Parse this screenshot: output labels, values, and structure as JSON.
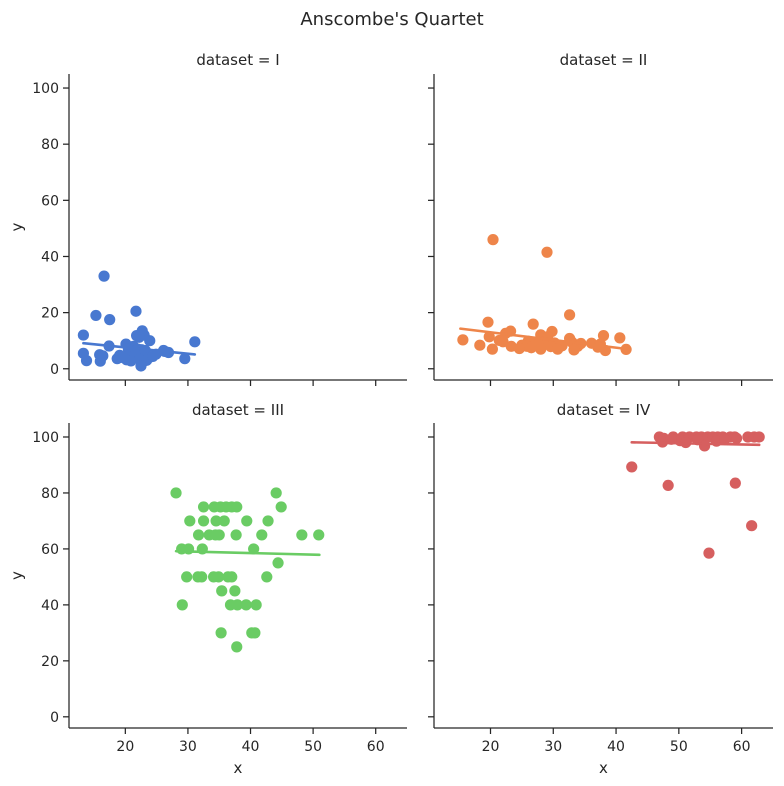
{
  "chart_data": {
    "type": "scatter",
    "title": "Anscombe's Quartet",
    "xlabel": "x",
    "ylabel": "y",
    "xlim": [
      11,
      65
    ],
    "ylim": [
      -4,
      105
    ],
    "xticks": [
      20,
      30,
      40,
      50,
      60
    ],
    "yticks": [
      0,
      20,
      40,
      60,
      80,
      100
    ],
    "grid": false,
    "panels": [
      {
        "name": "I",
        "title": "dataset = I",
        "color": "#4878d0",
        "fit": [
          [
            13.3,
            9.1
          ],
          [
            31.1,
            5.1
          ]
        ],
        "points": [
          [
            16.6,
            33
          ],
          [
            21.7,
            20.5
          ],
          [
            15.3,
            19
          ],
          [
            17.5,
            17.5
          ],
          [
            13.3,
            12
          ],
          [
            22.7,
            13.5
          ],
          [
            21.8,
            11.8
          ],
          [
            23.0,
            12.0
          ],
          [
            22.2,
            11.2
          ],
          [
            23.9,
            10
          ],
          [
            31.1,
            9.6
          ],
          [
            17.4,
            8.1
          ],
          [
            20.1,
            8.8
          ],
          [
            21.3,
            8.0
          ],
          [
            22.0,
            7.0
          ],
          [
            20.5,
            6.8
          ],
          [
            22.6,
            6.8
          ],
          [
            23.2,
            6.5
          ],
          [
            26.1,
            6.5
          ],
          [
            26.9,
            5.8
          ],
          [
            26.3,
            6.2
          ],
          [
            13.3,
            5.5
          ],
          [
            15.9,
            5.0
          ],
          [
            16.4,
            4.6
          ],
          [
            19.1,
            4.8
          ],
          [
            20.4,
            4.4
          ],
          [
            21.5,
            4.7
          ],
          [
            18.7,
            3.6
          ],
          [
            20.2,
            3.2
          ],
          [
            20.9,
            2.8
          ],
          [
            22.3,
            3.4
          ],
          [
            23.4,
            3.0
          ],
          [
            23.8,
            4.0
          ],
          [
            24.4,
            4.4
          ],
          [
            24.9,
            5.2
          ],
          [
            29.5,
            3.6
          ],
          [
            13.8,
            2.9
          ],
          [
            16.0,
            2.7
          ],
          [
            22.5,
            1.0
          ],
          [
            19.6,
            4.0
          ]
        ]
      },
      {
        "name": "II",
        "title": "dataset = II",
        "color": "#ee854a",
        "fit": [
          [
            15.2,
            14.3
          ],
          [
            41.9,
            7.0
          ]
        ],
        "points": [
          [
            20.4,
            46
          ],
          [
            29.0,
            41.5
          ],
          [
            32.6,
            19.2
          ],
          [
            19.6,
            16.6
          ],
          [
            26.8,
            15.9
          ],
          [
            23.2,
            13.4
          ],
          [
            22.4,
            12.6
          ],
          [
            29.8,
            13.3
          ],
          [
            28.0,
            12.1
          ],
          [
            19.8,
            11.4
          ],
          [
            29.1,
            11.4
          ],
          [
            32.6,
            10.8
          ],
          [
            38.0,
            11.8
          ],
          [
            40.6,
            11.0
          ],
          [
            15.6,
            10.3
          ],
          [
            21.4,
            10.1
          ],
          [
            22.0,
            9.6
          ],
          [
            26.0,
            9.8
          ],
          [
            27.2,
            9.5
          ],
          [
            28.5,
            9.6
          ],
          [
            30.2,
            9.2
          ],
          [
            33.0,
            9.4
          ],
          [
            34.4,
            9.0
          ],
          [
            36.1,
            9.1
          ],
          [
            37.5,
            8.8
          ],
          [
            18.3,
            8.4
          ],
          [
            23.3,
            8.0
          ],
          [
            25.0,
            8.4
          ],
          [
            25.8,
            8.0
          ],
          [
            27.6,
            8.7
          ],
          [
            29.6,
            7.9
          ],
          [
            31.4,
            8.2
          ],
          [
            33.9,
            8.0
          ],
          [
            37.1,
            7.7
          ],
          [
            20.3,
            7.0
          ],
          [
            24.6,
            7.2
          ],
          [
            26.5,
            7.5
          ],
          [
            28.0,
            7.0
          ],
          [
            33.3,
            6.7
          ],
          [
            38.3,
            6.5
          ],
          [
            41.6,
            6.9
          ],
          [
            30.7,
            7.0
          ]
        ]
      },
      {
        "name": "III",
        "title": "dataset = III",
        "color": "#6acc64",
        "fit": [
          [
            28.1,
            59.2
          ],
          [
            51.0,
            57.9
          ]
        ],
        "points": [
          [
            28.1,
            80
          ],
          [
            44.1,
            80
          ],
          [
            32.5,
            75
          ],
          [
            34.2,
            75
          ],
          [
            35.2,
            75
          ],
          [
            36.1,
            75
          ],
          [
            37.0,
            75
          ],
          [
            37.8,
            75
          ],
          [
            44.9,
            75
          ],
          [
            30.3,
            70
          ],
          [
            32.5,
            70
          ],
          [
            34.5,
            70
          ],
          [
            35.8,
            70
          ],
          [
            39.4,
            70
          ],
          [
            42.8,
            70
          ],
          [
            31.7,
            65
          ],
          [
            33.4,
            65
          ],
          [
            34.4,
            65
          ],
          [
            35.0,
            65
          ],
          [
            37.7,
            65
          ],
          [
            41.8,
            65
          ],
          [
            48.2,
            65
          ],
          [
            50.9,
            65
          ],
          [
            29.0,
            60
          ],
          [
            30.1,
            60
          ],
          [
            32.3,
            60
          ],
          [
            40.5,
            60
          ],
          [
            44.4,
            55
          ],
          [
            29.8,
            50
          ],
          [
            31.6,
            50
          ],
          [
            32.2,
            50
          ],
          [
            34.1,
            50
          ],
          [
            34.9,
            50
          ],
          [
            36.4,
            50
          ],
          [
            37.0,
            50
          ],
          [
            42.6,
            50
          ],
          [
            35.4,
            45
          ],
          [
            37.5,
            45
          ],
          [
            29.1,
            40
          ],
          [
            36.8,
            40
          ],
          [
            37.9,
            40
          ],
          [
            39.3,
            40
          ],
          [
            40.9,
            40
          ],
          [
            35.3,
            30
          ],
          [
            40.2,
            30
          ],
          [
            40.7,
            30
          ],
          [
            37.8,
            25
          ]
        ]
      },
      {
        "name": "IV",
        "title": "dataset = IV",
        "color": "#d65f5f",
        "fit": [
          [
            42.5,
            98.1
          ],
          [
            62.8,
            97.2
          ]
        ],
        "points": [
          [
            46.9,
            100
          ],
          [
            47.6,
            99.5
          ],
          [
            49.1,
            100
          ],
          [
            50.6,
            100
          ],
          [
            51.7,
            100
          ],
          [
            52.8,
            100
          ],
          [
            53.6,
            100
          ],
          [
            54.6,
            100
          ],
          [
            55.4,
            100
          ],
          [
            56.2,
            100
          ],
          [
            57.0,
            100
          ],
          [
            58.2,
            100
          ],
          [
            58.9,
            100
          ],
          [
            59.2,
            99.5
          ],
          [
            61.0,
            100
          ],
          [
            62.0,
            100
          ],
          [
            62.8,
            100
          ],
          [
            47.4,
            98.2
          ],
          [
            50.2,
            98.7
          ],
          [
            51.1,
            98.0
          ],
          [
            53.0,
            99.0
          ],
          [
            54.1,
            96.8
          ],
          [
            56.0,
            98.5
          ],
          [
            57.3,
            99.1
          ],
          [
            48.8,
            99.2
          ],
          [
            42.5,
            89.3
          ],
          [
            48.3,
            82.7
          ],
          [
            59.0,
            83.5
          ],
          [
            61.6,
            68.3
          ],
          [
            54.8,
            58.5
          ]
        ]
      }
    ]
  }
}
